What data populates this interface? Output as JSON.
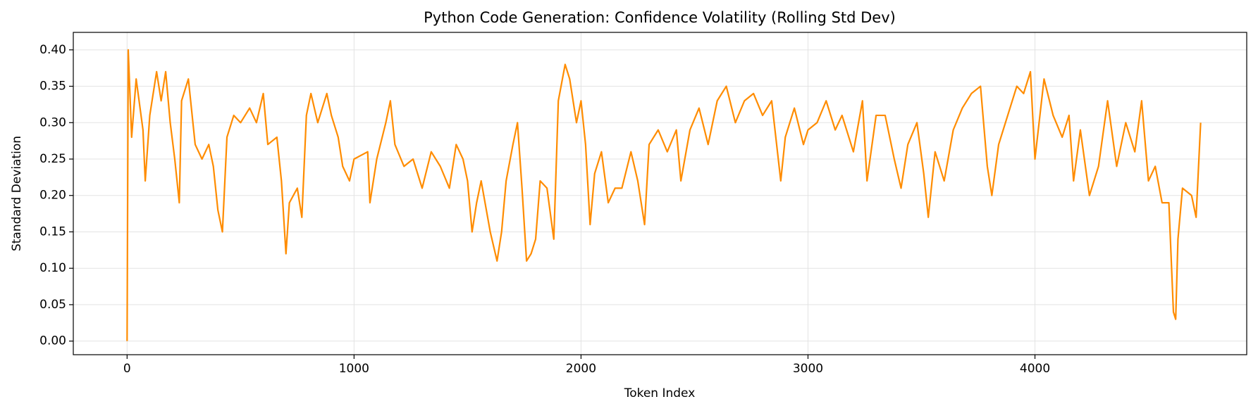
{
  "chart_data": {
    "type": "line",
    "title": "Python Code Generation: Confidence Volatility (Rolling Std Dev)",
    "x_label": "Token Index",
    "y_label": "Standard Deviation",
    "xlim": [
      -237,
      4933
    ],
    "ylim": [
      -0.0187,
      0.424
    ],
    "xticks": [
      0,
      1000,
      2000,
      3000,
      4000
    ],
    "yticks": [
      {
        "value": 0,
        "label": "0.00"
      },
      0.05,
      {
        "value": 0.1,
        "label": "0.10"
      },
      0.15,
      {
        "value": 0.2,
        "label": "0.20"
      },
      0.25,
      {
        "value": 0.3,
        "label": "0.30"
      },
      0.35,
      {
        "value": 0.4,
        "label": "0.40"
      }
    ],
    "grid": true,
    "color": "#ff8c00",
    "x": [
      0,
      5,
      20,
      40,
      70,
      80,
      100,
      130,
      150,
      170,
      190,
      210,
      230,
      240,
      270,
      300,
      330,
      360,
      380,
      400,
      420,
      440,
      470,
      500,
      540,
      570,
      600,
      620,
      660,
      680,
      700,
      715,
      750,
      770,
      790,
      810,
      840,
      880,
      900,
      930,
      950,
      980,
      1000,
      1060,
      1070,
      1100,
      1140,
      1160,
      1180,
      1220,
      1260,
      1300,
      1340,
      1380,
      1420,
      1450,
      1480,
      1500,
      1520,
      1540,
      1560,
      1600,
      1630,
      1650,
      1670,
      1700,
      1720,
      1740,
      1760,
      1780,
      1800,
      1820,
      1850,
      1880,
      1900,
      1930,
      1950,
      1980,
      2000,
      2020,
      2040,
      2060,
      2090,
      2120,
      2150,
      2180,
      2220,
      2250,
      2280,
      2300,
      2340,
      2380,
      2420,
      2440,
      2480,
      2520,
      2560,
      2600,
      2640,
      2680,
      2720,
      2760,
      2800,
      2840,
      2880,
      2900,
      2940,
      2980,
      3000,
      3040,
      3080,
      3120,
      3150,
      3200,
      3240,
      3260,
      3300,
      3340,
      3380,
      3410,
      3440,
      3480,
      3510,
      3530,
      3560,
      3600,
      3640,
      3680,
      3720,
      3760,
      3790,
      3810,
      3840,
      3880,
      3920,
      3950,
      3980,
      4000,
      4040,
      4080,
      4120,
      4150,
      4170,
      4200,
      4240,
      4280,
      4320,
      4360,
      4400,
      4440,
      4470,
      4500,
      4530,
      4560,
      4590,
      4610,
      4620,
      4630,
      4650,
      4690,
      4710,
      4730
    ],
    "values": [
      0.0,
      0.4,
      0.28,
      0.36,
      0.29,
      0.22,
      0.31,
      0.37,
      0.33,
      0.37,
      0.3,
      0.25,
      0.19,
      0.33,
      0.36,
      0.27,
      0.25,
      0.27,
      0.24,
      0.18,
      0.15,
      0.28,
      0.31,
      0.3,
      0.32,
      0.3,
      0.34,
      0.27,
      0.28,
      0.22,
      0.12,
      0.19,
      0.21,
      0.17,
      0.31,
      0.34,
      0.3,
      0.34,
      0.31,
      0.28,
      0.24,
      0.22,
      0.25,
      0.26,
      0.19,
      0.25,
      0.3,
      0.33,
      0.27,
      0.24,
      0.25,
      0.21,
      0.26,
      0.24,
      0.21,
      0.27,
      0.25,
      0.22,
      0.15,
      0.19,
      0.22,
      0.15,
      0.11,
      0.15,
      0.22,
      0.27,
      0.3,
      0.21,
      0.11,
      0.12,
      0.14,
      0.22,
      0.21,
      0.14,
      0.33,
      0.38,
      0.36,
      0.3,
      0.33,
      0.27,
      0.16,
      0.23,
      0.26,
      0.19,
      0.21,
      0.21,
      0.26,
      0.22,
      0.16,
      0.27,
      0.29,
      0.26,
      0.29,
      0.22,
      0.29,
      0.32,
      0.27,
      0.33,
      0.35,
      0.3,
      0.33,
      0.34,
      0.31,
      0.33,
      0.22,
      0.28,
      0.32,
      0.27,
      0.29,
      0.3,
      0.33,
      0.29,
      0.31,
      0.26,
      0.33,
      0.22,
      0.31,
      0.31,
      0.25,
      0.21,
      0.27,
      0.3,
      0.23,
      0.17,
      0.26,
      0.22,
      0.29,
      0.32,
      0.34,
      0.35,
      0.24,
      0.2,
      0.27,
      0.31,
      0.35,
      0.34,
      0.37,
      0.25,
      0.36,
      0.31,
      0.28,
      0.31,
      0.22,
      0.29,
      0.2,
      0.24,
      0.33,
      0.24,
      0.3,
      0.26,
      0.33,
      0.22,
      0.24,
      0.19,
      0.19,
      0.04,
      0.03,
      0.14,
      0.21,
      0.2,
      0.17,
      0.3
    ]
  }
}
